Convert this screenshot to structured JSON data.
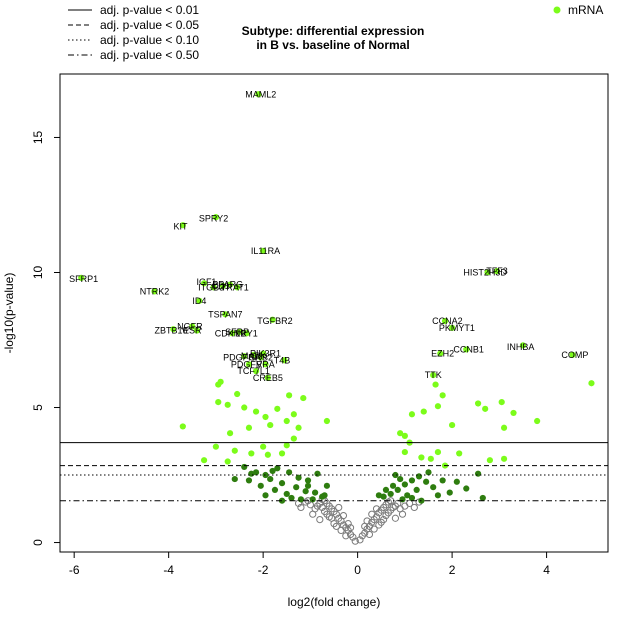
{
  "chart_data": {
    "type": "scatter",
    "title": [
      "Subtype: differential expression",
      "in B vs. baseline of Normal"
    ],
    "xlabel": "log2(fold change)",
    "ylabel": "-log10(p-value)",
    "xlim": [
      -6.3,
      5.3
    ],
    "ylim": [
      -0.35,
      17.35
    ],
    "x_ticks": [
      -6,
      -4,
      -2,
      0,
      2,
      4
    ],
    "y_ticks": [
      0,
      5,
      10,
      15
    ],
    "grid": false,
    "legend_placement": "top",
    "colors": {
      "not_significant": "#7a7a7a",
      "significant_dark": "#2e7d0f",
      "significant_light": "#7cfc1a",
      "threshold_line": "#000000"
    },
    "legend": {
      "lines": [
        {
          "label": "adj. p-value < 0.01",
          "style": "solid",
          "y": 3.7
        },
        {
          "label": "adj. p-value < 0.05",
          "style": "dashed",
          "y": 2.85
        },
        {
          "label": "adj. p-value < 0.10",
          "style": "dotted",
          "y": 2.5
        },
        {
          "label": "adj. p-value < 0.50",
          "style": "dotdash",
          "y": 1.55
        }
      ],
      "points": [
        {
          "label": "mRNA",
          "color": "#7cfc1a"
        }
      ]
    },
    "labeled_genes": [
      {
        "label": "MAML2",
        "x": -2.05,
        "y": 16.6
      },
      {
        "label": "SPRY2",
        "x": -3.05,
        "y": 12.0
      },
      {
        "label": "KIT",
        "x": -3.75,
        "y": 11.7
      },
      {
        "label": "IL11RA",
        "x": -1.95,
        "y": 10.8
      },
      {
        "label": "SFRP1",
        "x": -5.8,
        "y": 9.75
      },
      {
        "label": "IGF1",
        "x": -3.2,
        "y": 9.65
      },
      {
        "label": "ITGB3",
        "x": -3.1,
        "y": 9.45
      },
      {
        "label": "CD1",
        "x": -2.9,
        "y": 9.5
      },
      {
        "label": "PPARG",
        "x": -2.75,
        "y": 9.55
      },
      {
        "label": "TRAT1",
        "x": -2.6,
        "y": 9.45
      },
      {
        "label": "NTRK2",
        "x": -4.3,
        "y": 9.3
      },
      {
        "label": "ID4",
        "x": -3.35,
        "y": 8.95
      },
      {
        "label": "TSPAN7",
        "x": -2.8,
        "y": 8.45
      },
      {
        "label": "TGFBR2",
        "x": -1.75,
        "y": 8.2
      },
      {
        "label": "NGFR",
        "x": -3.55,
        "y": 8.0
      },
      {
        "label": "ZBTB16",
        "x": -3.95,
        "y": 7.85
      },
      {
        "label": "ESR",
        "x": -3.5,
        "y": 7.85
      },
      {
        "label": "CDKN1",
        "x": -2.7,
        "y": 7.75
      },
      {
        "label": "SFRP",
        "x": -2.55,
        "y": 7.8
      },
      {
        "label": "LRY1",
        "x": -2.35,
        "y": 7.75
      },
      {
        "label": "PIK3R1",
        "x": -1.95,
        "y": 7.0
      },
      {
        "label": "PDGFRA",
        "x": -2.45,
        "y": 6.85
      },
      {
        "label": "MAPK",
        "x": -2.2,
        "y": 6.9
      },
      {
        "label": "GRB2",
        "x": -2.05,
        "y": 6.85
      },
      {
        "label": "T4B",
        "x": -1.6,
        "y": 6.75
      },
      {
        "label": "PDGFR",
        "x": -2.35,
        "y": 6.6
      },
      {
        "label": "VRA",
        "x": -1.95,
        "y": 6.6
      },
      {
        "label": "TCF7L1",
        "x": -2.2,
        "y": 6.35
      },
      {
        "label": "CREB5",
        "x": -1.9,
        "y": 6.1
      },
      {
        "label": "HIST2H3D",
        "x": 2.7,
        "y": 10.0
      },
      {
        "label": "TFF3",
        "x": 2.95,
        "y": 10.05
      },
      {
        "label": "CCNA2",
        "x": 1.9,
        "y": 8.2
      },
      {
        "label": "PKMYT1",
        "x": 2.1,
        "y": 7.95
      },
      {
        "label": "INHBA",
        "x": 3.45,
        "y": 7.25
      },
      {
        "label": "CCNB1",
        "x": 2.35,
        "y": 7.15
      },
      {
        "label": "EZH2",
        "x": 1.8,
        "y": 7.0
      },
      {
        "label": "COMP",
        "x": 4.6,
        "y": 6.95
      },
      {
        "label": "TTK",
        "x": 1.6,
        "y": 6.2
      }
    ],
    "light_points": [
      [
        -2.1,
        16.6
      ],
      [
        -3.0,
        12.05
      ],
      [
        -3.7,
        11.75
      ],
      [
        -2.0,
        10.8
      ],
      [
        -5.85,
        9.8
      ],
      [
        -3.25,
        9.6
      ],
      [
        -3.05,
        9.45
      ],
      [
        -2.85,
        9.5
      ],
      [
        -2.7,
        9.55
      ],
      [
        -2.55,
        9.45
      ],
      [
        -4.3,
        9.3
      ],
      [
        -3.35,
        8.95
      ],
      [
        -2.8,
        8.45
      ],
      [
        -1.8,
        8.25
      ],
      [
        -3.5,
        8.0
      ],
      [
        -3.9,
        7.9
      ],
      [
        -3.4,
        7.85
      ],
      [
        -2.65,
        7.75
      ],
      [
        -2.5,
        7.8
      ],
      [
        -2.35,
        7.75
      ],
      [
        -2.0,
        7.0
      ],
      [
        -2.4,
        6.9
      ],
      [
        -2.2,
        6.95
      ],
      [
        -2.05,
        6.85
      ],
      [
        -1.55,
        6.75
      ],
      [
        -2.3,
        6.6
      ],
      [
        -1.95,
        6.6
      ],
      [
        -2.15,
        6.35
      ],
      [
        -1.9,
        6.1
      ],
      [
        2.75,
        10.0
      ],
      [
        2.95,
        10.05
      ],
      [
        1.85,
        8.2
      ],
      [
        2.0,
        7.95
      ],
      [
        3.5,
        7.3
      ],
      [
        2.3,
        7.15
      ],
      [
        1.75,
        7.0
      ],
      [
        4.55,
        6.95
      ],
      [
        1.6,
        6.2
      ],
      [
        -2.9,
        5.95
      ],
      [
        -2.55,
        5.5
      ],
      [
        -2.75,
        5.1
      ],
      [
        -2.4,
        5.0
      ],
      [
        -1.45,
        5.45
      ],
      [
        -1.15,
        5.35
      ],
      [
        -1.7,
        4.95
      ],
      [
        -2.15,
        4.85
      ],
      [
        -1.35,
        4.75
      ],
      [
        -1.95,
        4.65
      ],
      [
        -1.85,
        4.35
      ],
      [
        -1.5,
        4.5
      ],
      [
        -2.3,
        4.25
      ],
      [
        -2.7,
        4.05
      ],
      [
        -1.25,
        4.25
      ],
      [
        -0.65,
        4.5
      ],
      [
        -3.7,
        4.3
      ],
      [
        -2.95,
        5.85
      ],
      [
        -2.95,
        5.2
      ],
      [
        1.65,
        5.85
      ],
      [
        1.8,
        5.45
      ],
      [
        1.7,
        5.05
      ],
      [
        1.4,
        4.85
      ],
      [
        1.15,
        4.75
      ],
      [
        2.0,
        4.35
      ],
      [
        3.05,
        5.2
      ],
      [
        3.3,
        4.8
      ],
      [
        3.1,
        4.25
      ],
      [
        3.8,
        4.5
      ],
      [
        2.55,
        5.15
      ],
      [
        2.7,
        4.95
      ],
      [
        1.0,
        3.95
      ],
      [
        1.1,
        3.7
      ],
      [
        0.9,
        4.05
      ],
      [
        4.95,
        5.9
      ],
      [
        -3.0,
        3.55
      ],
      [
        -2.6,
        3.4
      ],
      [
        -2.0,
        3.55
      ],
      [
        -1.35,
        3.85
      ],
      [
        -1.5,
        3.6
      ],
      [
        -2.75,
        3.0
      ],
      [
        -2.25,
        3.3
      ],
      [
        -1.9,
        3.25
      ],
      [
        -1.6,
        3.3
      ],
      [
        -3.25,
        3.05
      ],
      [
        1.0,
        3.35
      ],
      [
        1.35,
        3.15
      ],
      [
        1.7,
        3.35
      ],
      [
        2.15,
        3.3
      ],
      [
        2.8,
        3.05
      ],
      [
        1.85,
        2.85
      ],
      [
        3.1,
        3.1
      ],
      [
        1.55,
        3.1
      ]
    ],
    "dark_points": [
      [
        -2.4,
        2.8
      ],
      [
        -2.15,
        2.6
      ],
      [
        -1.95,
        2.5
      ],
      [
        -1.7,
        2.75
      ],
      [
        -1.45,
        2.6
      ],
      [
        -1.25,
        2.4
      ],
      [
        -1.05,
        2.3
      ],
      [
        -0.85,
        2.55
      ],
      [
        -0.65,
        2.1
      ],
      [
        -1.6,
        2.2
      ],
      [
        -1.85,
        2.35
      ],
      [
        -2.05,
        2.1
      ],
      [
        -1.3,
        2.05
      ],
      [
        -1.1,
        1.9
      ],
      [
        -0.9,
        1.85
      ],
      [
        -0.7,
        1.75
      ],
      [
        -1.5,
        1.8
      ],
      [
        -1.75,
        1.95
      ],
      [
        -1.95,
        1.75
      ],
      [
        -2.3,
        2.3
      ],
      [
        -1.4,
        1.65
      ],
      [
        -1.2,
        1.6
      ],
      [
        -0.95,
        1.6
      ],
      [
        -0.75,
        1.7
      ],
      [
        -2.6,
        2.35
      ],
      [
        -1.6,
        1.55
      ],
      [
        -1.05,
        2.1
      ],
      [
        -1.8,
        2.65
      ],
      [
        -2.25,
        2.55
      ],
      [
        0.55,
        1.7
      ],
      [
        0.7,
        1.8
      ],
      [
        0.85,
        1.95
      ],
      [
        1.0,
        2.15
      ],
      [
        1.15,
        2.3
      ],
      [
        1.3,
        2.45
      ],
      [
        1.45,
        2.25
      ],
      [
        0.9,
        2.35
      ],
      [
        0.75,
        2.1
      ],
      [
        1.05,
        1.75
      ],
      [
        1.25,
        1.95
      ],
      [
        1.6,
        2.05
      ],
      [
        1.8,
        2.3
      ],
      [
        2.1,
        2.25
      ],
      [
        2.3,
        2.0
      ],
      [
        0.6,
        1.95
      ],
      [
        0.95,
        1.6
      ],
      [
        1.15,
        1.65
      ],
      [
        0.45,
        1.75
      ],
      [
        1.7,
        1.75
      ],
      [
        2.55,
        2.55
      ],
      [
        1.95,
        1.85
      ],
      [
        1.35,
        1.55
      ],
      [
        2.65,
        1.65
      ],
      [
        1.5,
        2.6
      ],
      [
        0.8,
        2.5
      ]
    ],
    "nonsig_points": [
      [
        -0.05,
        0.05
      ],
      [
        0.05,
        0.1
      ],
      [
        -0.1,
        0.2
      ],
      [
        0.1,
        0.25
      ],
      [
        -0.15,
        0.3
      ],
      [
        0.15,
        0.35
      ],
      [
        -0.2,
        0.45
      ],
      [
        0.2,
        0.5
      ],
      [
        -0.25,
        0.55
      ],
      [
        0.25,
        0.6
      ],
      [
        -0.3,
        0.65
      ],
      [
        0.3,
        0.75
      ],
      [
        -0.35,
        0.8
      ],
      [
        0.35,
        0.85
      ],
      [
        -0.4,
        0.9
      ],
      [
        0.4,
        0.95
      ],
      [
        -0.45,
        1.05
      ],
      [
        0.45,
        1.1
      ],
      [
        -0.5,
        1.15
      ],
      [
        0.5,
        1.2
      ],
      [
        -0.55,
        1.25
      ],
      [
        0.55,
        1.3
      ],
      [
        -0.6,
        1.35
      ],
      [
        0.6,
        1.4
      ],
      [
        -0.65,
        1.45
      ],
      [
        0.65,
        1.5
      ],
      [
        -0.7,
        1.55
      ],
      [
        0.7,
        1.55
      ],
      [
        -0.75,
        1.6
      ],
      [
        -0.8,
        1.45
      ],
      [
        -0.85,
        1.35
      ],
      [
        0.8,
        1.35
      ],
      [
        0.85,
        1.45
      ],
      [
        -0.9,
        1.25
      ],
      [
        0.9,
        1.25
      ],
      [
        -1.0,
        1.4
      ],
      [
        1.0,
        1.35
      ],
      [
        -0.35,
        0.45
      ],
      [
        0.35,
        0.5
      ],
      [
        -0.5,
        0.7
      ],
      [
        0.5,
        0.75
      ],
      [
        -0.6,
        0.95
      ],
      [
        0.6,
        1.0
      ],
      [
        -0.7,
        1.15
      ],
      [
        0.7,
        1.2
      ],
      [
        -0.25,
        0.25
      ],
      [
        0.25,
        0.3
      ],
      [
        -0.45,
        0.6
      ],
      [
        0.45,
        0.65
      ],
      [
        -0.55,
        0.9
      ],
      [
        0.55,
        0.85
      ],
      [
        -0.65,
        1.05
      ],
      [
        0.65,
        1.1
      ],
      [
        -0.2,
        0.7
      ],
      [
        0.2,
        0.8
      ],
      [
        -0.3,
        1.0
      ],
      [
        0.3,
        1.05
      ],
      [
        -0.4,
        1.3
      ],
      [
        0.4,
        1.25
      ],
      [
        -0.15,
        0.55
      ],
      [
        0.15,
        0.6
      ],
      [
        -1.1,
        1.5
      ],
      [
        1.1,
        1.45
      ],
      [
        -1.2,
        1.3
      ],
      [
        1.2,
        1.3
      ],
      [
        -0.95,
        1.05
      ],
      [
        0.95,
        1.05
      ],
      [
        -0.8,
        0.85
      ],
      [
        0.8,
        0.9
      ],
      [
        -1.05,
        1.55
      ],
      [
        -1.25,
        1.45
      ],
      [
        1.3,
        1.5
      ],
      [
        -0.75,
        1.3
      ],
      [
        0.75,
        1.3
      ]
    ]
  }
}
